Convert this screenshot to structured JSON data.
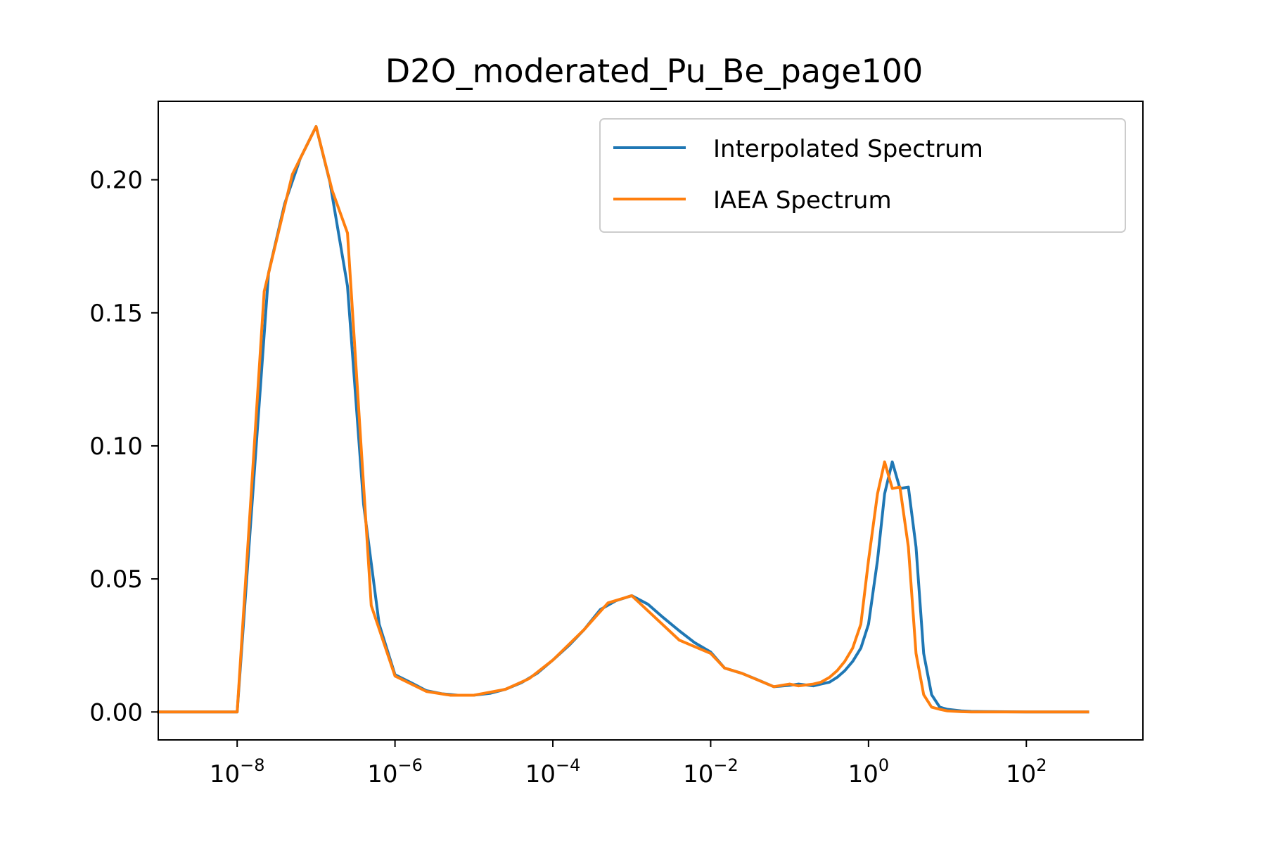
{
  "chart_data": {
    "type": "line",
    "title": "D2O_moderated_Pu_Be_page100",
    "xlabel": "",
    "ylabel": "",
    "xscale": "log",
    "xlim": [
      1e-09,
      3000
    ],
    "ylim": [
      -0.0105,
      0.2295
    ],
    "grid": false,
    "legend_position": "upper right",
    "x_ticks": [
      {
        "value": 1e-08,
        "base": "10",
        "exp": "−8"
      },
      {
        "value": 1e-06,
        "base": "10",
        "exp": "−6"
      },
      {
        "value": 0.0001,
        "base": "10",
        "exp": "−4"
      },
      {
        "value": 0.01,
        "base": "10",
        "exp": "−2"
      },
      {
        "value": 1,
        "base": "10",
        "exp": "0"
      },
      {
        "value": 100,
        "base": "10",
        "exp": "2"
      }
    ],
    "y_ticks": [
      {
        "value": 0.0,
        "label": "0.00"
      },
      {
        "value": 0.05,
        "label": "0.05"
      },
      {
        "value": 0.1,
        "label": "0.10"
      },
      {
        "value": 0.15,
        "label": "0.15"
      },
      {
        "value": 0.2,
        "label": "0.20"
      }
    ],
    "series": [
      {
        "name": "Interpolated Spectrum",
        "color": "#1f77b4",
        "x": [
          1e-09,
          1e-08,
          2.5e-08,
          4e-08,
          6.3e-08,
          1e-07,
          1.5e-07,
          2.5e-07,
          4e-07,
          6.3e-07,
          1e-06,
          1.6e-06,
          2.5e-06,
          4e-06,
          6.3e-06,
          1e-05,
          1.6e-05,
          2.5e-05,
          4e-05,
          6.3e-05,
          0.0001,
          0.00016,
          0.00025,
          0.0004,
          0.00063,
          0.001,
          0.0016,
          0.0025,
          0.004,
          0.0063,
          0.01,
          0.015,
          0.025,
          0.04,
          0.063,
          0.1,
          0.13,
          0.2,
          0.25,
          0.32,
          0.4,
          0.5,
          0.63,
          0.8,
          1.0,
          1.3,
          1.6,
          2.0,
          2.5,
          3.2,
          4.0,
          5.0,
          6.3,
          8.0,
          10.0,
          15.0,
          20.0,
          40.0,
          100.0,
          600.0
        ],
        "y": [
          0.0,
          0.0,
          0.165,
          0.191,
          0.208,
          0.22,
          0.199,
          0.16,
          0.078,
          0.033,
          0.014,
          0.011,
          0.008,
          0.0068,
          0.0063,
          0.0063,
          0.007,
          0.0085,
          0.011,
          0.0145,
          0.0195,
          0.025,
          0.031,
          0.0385,
          0.0418,
          0.0437,
          0.0405,
          0.0355,
          0.0305,
          0.026,
          0.0225,
          0.0165,
          0.0145,
          0.012,
          0.0095,
          0.01,
          0.0105,
          0.0098,
          0.0105,
          0.0112,
          0.013,
          0.0155,
          0.019,
          0.024,
          0.033,
          0.057,
          0.082,
          0.094,
          0.084,
          0.0845,
          0.062,
          0.022,
          0.0065,
          0.0018,
          0.001,
          0.0004,
          0.0002,
          0.0001,
          0.0,
          0.0
        ]
      },
      {
        "name": "IAEA Spectrum",
        "color": "#ff7f0e",
        "x": [
          1e-09,
          1e-08,
          2.2e-08,
          5e-08,
          1e-07,
          1.6e-07,
          2.5e-07,
          5e-07,
          1e-06,
          2.5e-06,
          5e-06,
          1e-05,
          2.5e-05,
          5e-05,
          0.0001,
          0.00025,
          0.0005,
          0.001,
          0.004,
          0.01,
          0.015,
          0.025,
          0.063,
          0.1,
          0.13,
          0.2,
          0.25,
          0.32,
          0.4,
          0.5,
          0.63,
          0.8,
          1.0,
          1.3,
          1.6,
          2.0,
          2.5,
          3.2,
          4.0,
          5.0,
          6.3,
          8.0,
          10.0,
          15.0,
          20.0,
          100.0,
          600.0
        ],
        "y": [
          0.0,
          0.0,
          0.158,
          0.202,
          0.22,
          0.196,
          0.18,
          0.04,
          0.0135,
          0.0077,
          0.0063,
          0.0063,
          0.0085,
          0.0125,
          0.0195,
          0.031,
          0.041,
          0.0437,
          0.027,
          0.022,
          0.0165,
          0.0145,
          0.0095,
          0.0105,
          0.0098,
          0.0105,
          0.0112,
          0.013,
          0.0155,
          0.019,
          0.024,
          0.033,
          0.057,
          0.082,
          0.094,
          0.084,
          0.0845,
          0.062,
          0.022,
          0.0065,
          0.0018,
          0.001,
          0.0004,
          0.0001,
          0.0,
          0.0,
          0.0
        ]
      }
    ]
  }
}
